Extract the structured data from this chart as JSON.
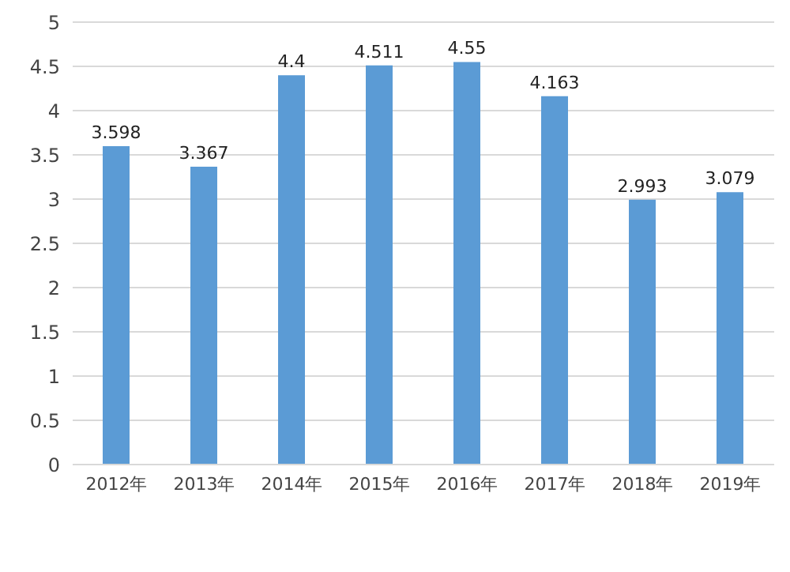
{
  "chart_data": {
    "type": "bar",
    "categories": [
      "2012年",
      "2013年",
      "2014年",
      "2015年",
      "2016年",
      "2017年",
      "2018年",
      "2019年"
    ],
    "values": [
      3.598,
      3.367,
      4.4,
      4.511,
      4.55,
      4.163,
      2.993,
      3.079
    ],
    "color": "#5b9bd5",
    "ylim": [
      0,
      5
    ],
    "yticks": [
      0,
      0.5,
      1,
      1.5,
      2,
      2.5,
      3,
      3.5,
      4,
      4.5,
      5
    ],
    "grid": "y",
    "data_labels": true
  }
}
